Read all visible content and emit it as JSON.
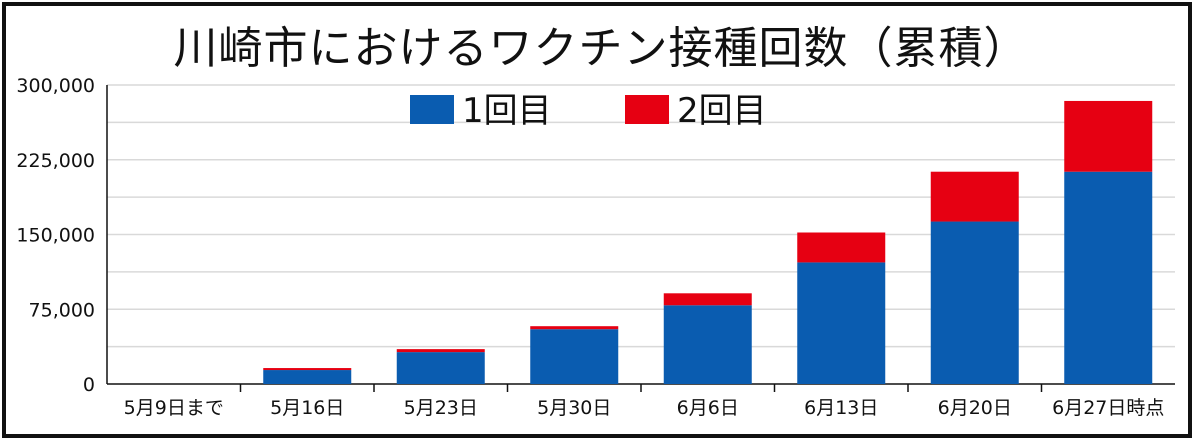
{
  "chart_data": {
    "type": "bar",
    "stacked": true,
    "title": "川崎市におけるワクチン接種回数（累積）",
    "categories": [
      "5月9日まで",
      "5月16日",
      "5月23日",
      "5月30日",
      "6月6日",
      "6月13日",
      "6月20日",
      "6月27日時点"
    ],
    "series": [
      {
        "name": "1回目",
        "color": "#0a5cb0",
        "values": [
          0,
          14000,
          32000,
          55000,
          79000,
          122000,
          163000,
          213000
        ]
      },
      {
        "name": "2回目",
        "color": "#e60012",
        "values": [
          0,
          2000,
          3000,
          3000,
          12000,
          30000,
          50000,
          71000
        ]
      }
    ],
    "yticks": [
      "0",
      "75,000",
      "150,000",
      "225,000",
      "300,000"
    ],
    "ylim": [
      0,
      300000
    ],
    "grid": true,
    "legend_position": "top-center"
  }
}
